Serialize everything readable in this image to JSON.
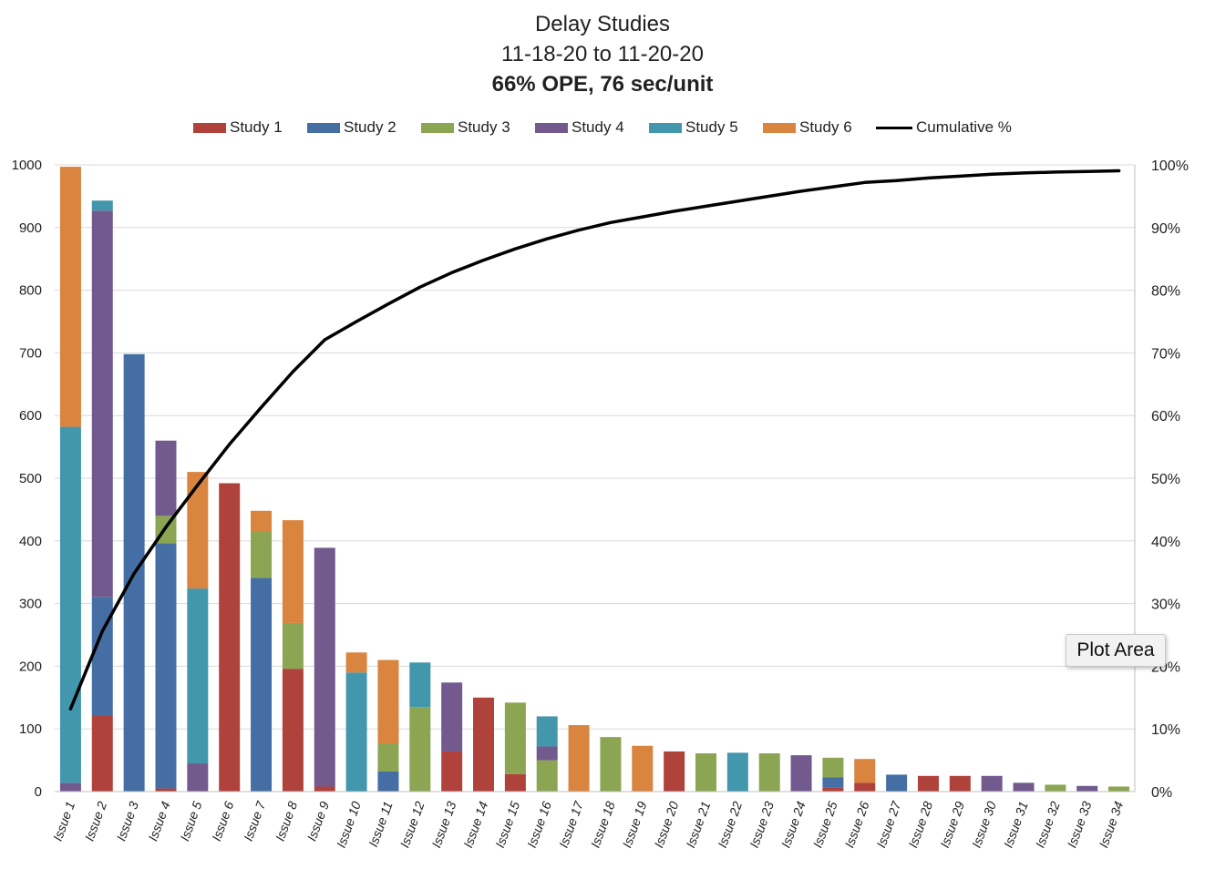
{
  "chart_data": {
    "type": "bar",
    "stacked": true,
    "title": "Delay Studies",
    "subtitle": "11-18-20 to 11-20-20",
    "subtitle2": "66% OPE, 76 sec/unit",
    "categories": [
      "Issue 1",
      "Issue 2",
      "Issue 3",
      "Issue 4",
      "Issue 5",
      "Issue 6",
      "Issue 7",
      "Issue 8",
      "Issue 9",
      "Issue 10",
      "Issue 11",
      "Issue 12",
      "Issue 13",
      "Issue 14",
      "Issue 15",
      "Issue 16",
      "Issue 17",
      "Issue 18",
      "Issue 19",
      "Issue 20",
      "Issue 21",
      "Issue 22",
      "Issue 23",
      "Issue 24",
      "Issue 25",
      "Issue 26",
      "Issue 27",
      "Issue 28",
      "Issue 29",
      "Issue 30",
      "Issue 31",
      "Issue 32",
      "Issue 33",
      "Issue 34"
    ],
    "series": [
      {
        "name": "Study 1",
        "color": "#b0423c",
        "values": [
          0,
          122,
          0,
          5,
          0,
          492,
          0,
          196,
          8,
          0,
          0,
          0,
          64,
          150,
          28,
          0,
          0,
          0,
          0,
          64,
          0,
          0,
          0,
          0,
          6,
          14,
          0,
          25,
          25,
          0,
          0,
          0,
          0,
          0
        ]
      },
      {
        "name": "Study 2",
        "color": "#456fa4",
        "values": [
          0,
          188,
          698,
          391,
          0,
          0,
          341,
          0,
          0,
          0,
          32,
          0,
          0,
          0,
          0,
          0,
          0,
          0,
          0,
          0,
          0,
          0,
          0,
          0,
          17,
          0,
          27,
          0,
          0,
          0,
          0,
          0,
          0,
          0
        ]
      },
      {
        "name": "Study 3",
        "color": "#8ca553",
        "values": [
          0,
          0,
          0,
          44,
          0,
          0,
          74,
          73,
          0,
          0,
          45,
          135,
          0,
          0,
          114,
          50,
          0,
          87,
          0,
          0,
          61,
          0,
          61,
          0,
          31,
          0,
          0,
          0,
          0,
          0,
          0,
          11,
          0,
          8
        ]
      },
      {
        "name": "Study 4",
        "color": "#735a8e",
        "values": [
          14,
          617,
          0,
          120,
          45,
          0,
          0,
          0,
          381,
          0,
          0,
          0,
          110,
          0,
          0,
          22,
          0,
          0,
          0,
          0,
          0,
          0,
          0,
          58,
          0,
          0,
          0,
          0,
          0,
          25,
          14,
          0,
          9,
          0
        ]
      },
      {
        "name": "Study 5",
        "color": "#4397ac",
        "values": [
          568,
          16,
          0,
          0,
          279,
          0,
          0,
          0,
          0,
          190,
          0,
          71,
          0,
          0,
          0,
          48,
          0,
          0,
          0,
          0,
          0,
          62,
          0,
          0,
          0,
          0,
          0,
          0,
          0,
          0,
          0,
          0,
          0,
          0
        ]
      },
      {
        "name": "Study 6",
        "color": "#d9843f",
        "values": [
          415,
          0,
          0,
          0,
          186,
          0,
          33,
          164,
          0,
          32,
          133,
          0,
          0,
          0,
          0,
          0,
          106,
          0,
          73,
          0,
          0,
          0,
          0,
          0,
          0,
          38,
          0,
          0,
          0,
          0,
          0,
          0,
          0,
          0
        ]
      }
    ],
    "line_series": {
      "name": "Cumulative %",
      "color": "#000000",
      "values": [
        13.2,
        25.6,
        34.8,
        42.2,
        48.9,
        55.4,
        61.3,
        67.0,
        72.1,
        75.0,
        77.8,
        80.5,
        82.8,
        84.8,
        86.6,
        88.2,
        89.6,
        90.8,
        91.7,
        92.6,
        93.4,
        94.2,
        95.0,
        95.8,
        96.5,
        97.2,
        97.5,
        97.9,
        98.2,
        98.5,
        98.7,
        98.85,
        98.95,
        99.05
      ]
    },
    "ylim": [
      0,
      1000
    ],
    "y_ticks": [
      0,
      100,
      200,
      300,
      400,
      500,
      600,
      700,
      800,
      900,
      1000
    ],
    "y2_ticks": [
      "0%",
      "10%",
      "20%",
      "30%",
      "40%",
      "50%",
      "60%",
      "70%",
      "80%",
      "90%",
      "100%"
    ],
    "grid": true,
    "legend_position": "top"
  },
  "tooltip": "Plot Area"
}
